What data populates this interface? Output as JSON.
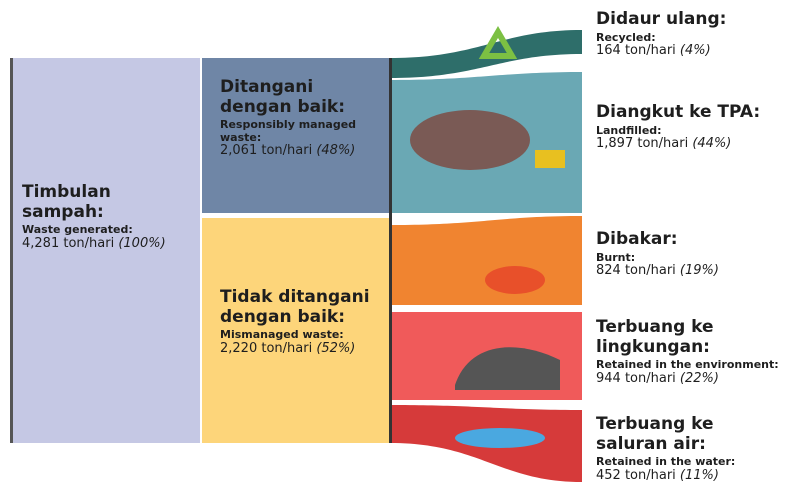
{
  "nodes": [
    {
      "title": "Timbulan sampah:",
      "label": "Waste generated:",
      "amount": "4,281 ton/hari",
      "share": "(100%)"
    },
    {
      "title": "Ditangani dengan baik:",
      "label": "Responsibly managed waste:",
      "amount": "2,061 ton/hari",
      "share": "(48%)"
    },
    {
      "title": "Tidak ditangani dengan baik:",
      "label": "Mismanaged waste:",
      "amount": "2,220 ton/hari",
      "share": "(52%)"
    },
    {
      "title": "Didaur ulang:",
      "label": "Recycled:",
      "amount": "164 ton/hari",
      "share": "(4%)"
    },
    {
      "title": "Diangkut ke TPA:",
      "label": "Landfilled:",
      "amount": "1,897 ton/hari",
      "share": "(44%)"
    },
    {
      "title": "Dibakar:",
      "label": "Burnt:",
      "amount": "824 ton/hari",
      "share": "(19%)"
    },
    {
      "title": "Terbuang ke lingkungan:",
      "label": "Retained in the environment:",
      "amount": "944 ton/hari",
      "share": "(22%)"
    },
    {
      "title": "Terbuang ke saluran air:",
      "label": "Retained in the water:",
      "amount": "452 ton/hari",
      "share": "(11%)"
    }
  ]
}
